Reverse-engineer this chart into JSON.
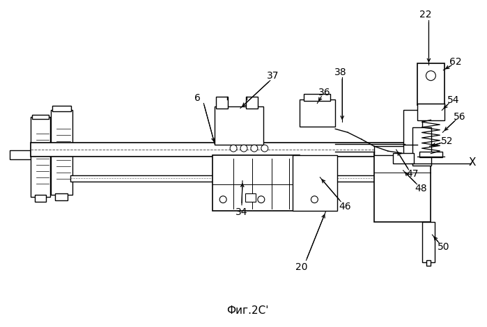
{
  "bg_color": "#ffffff",
  "line_color": "#000000",
  "fig_label": "Фиг.2C'"
}
